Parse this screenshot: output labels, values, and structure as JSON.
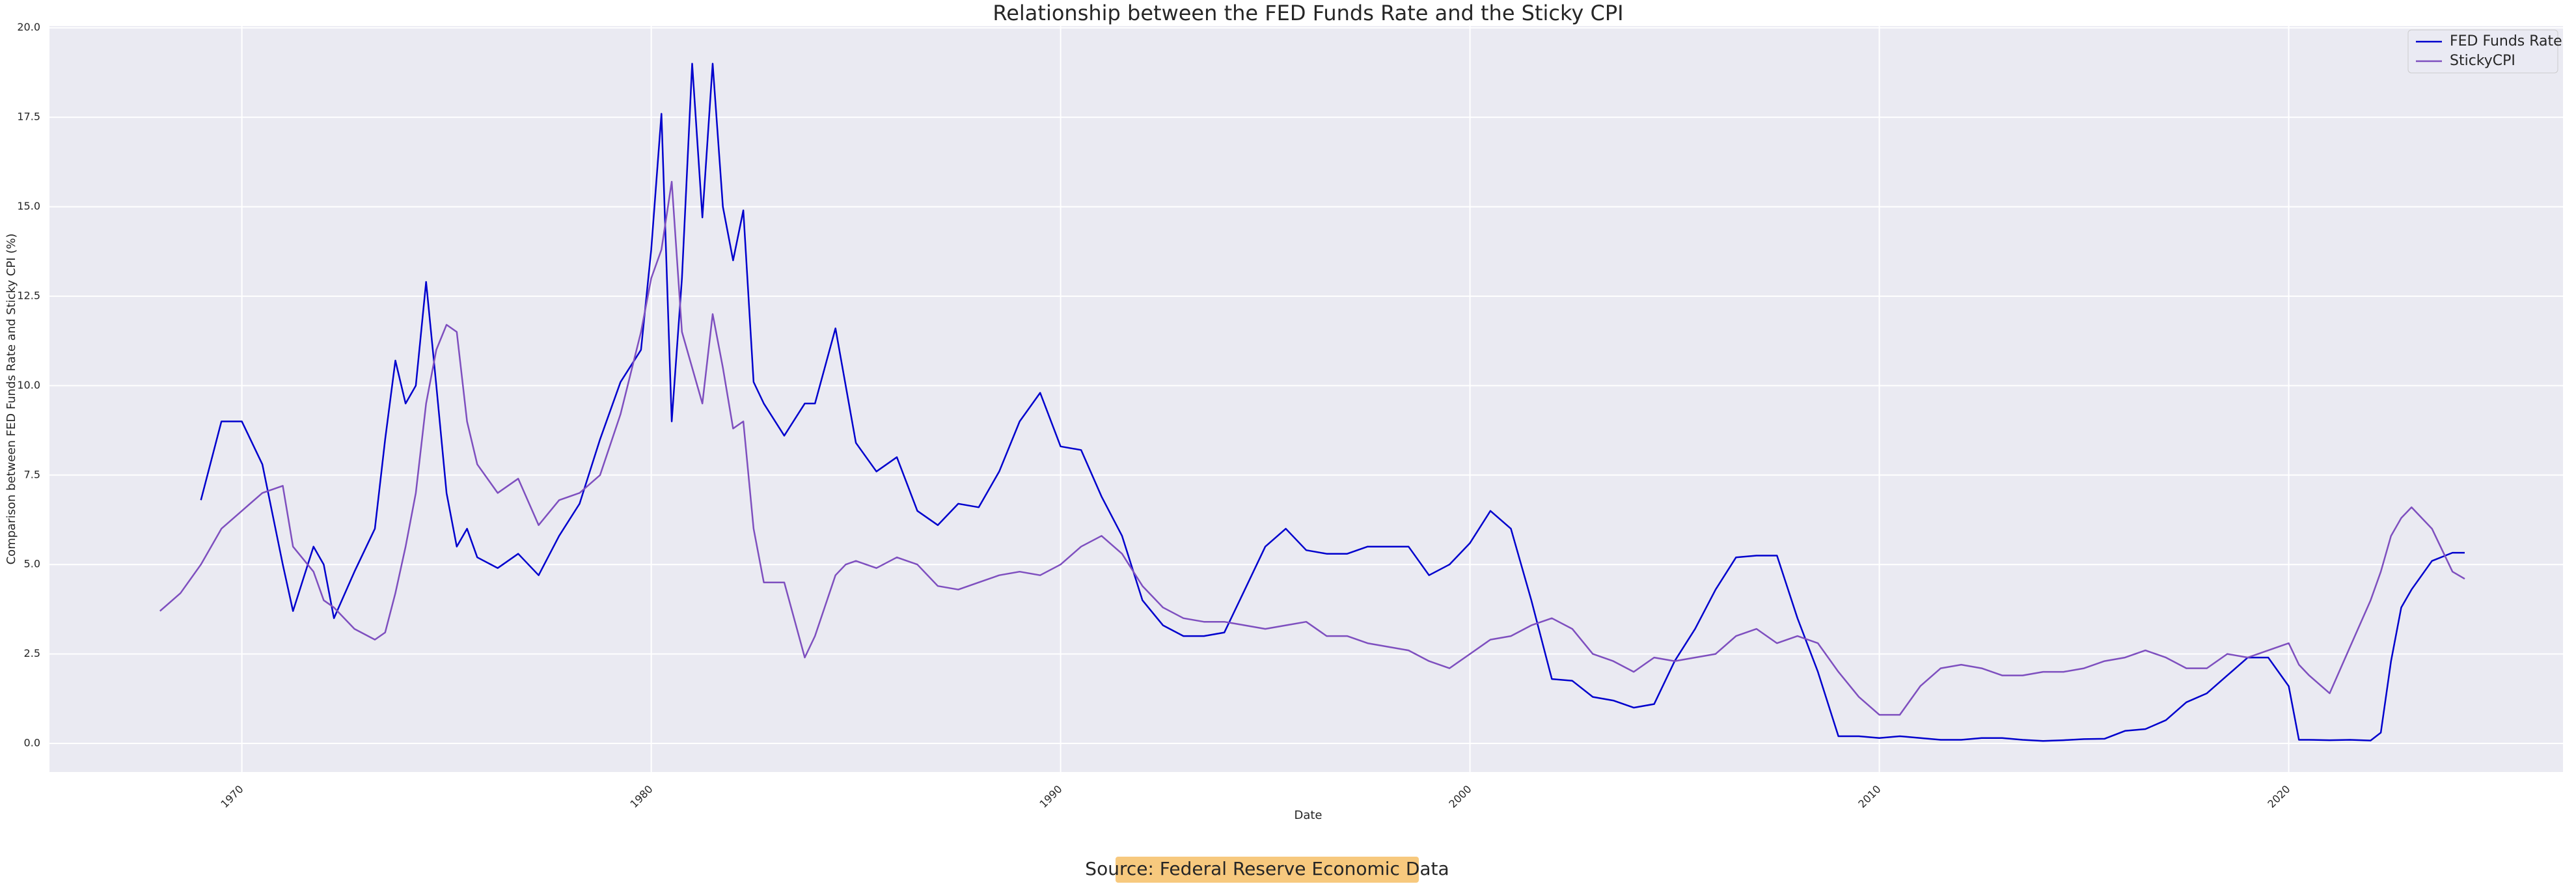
{
  "chart_data": {
    "type": "line",
    "title": "Relationship between the FED Funds Rate and the Sticky CPI",
    "x_label": "Date",
    "y_label": "Comparison between FED Funds Rate and Sticky CPI (%)",
    "annotation": "Source: Federal Reserve Economic Data",
    "grid": true,
    "legend": "upper right",
    "xlim": [
      1965.3,
      2026.7
    ],
    "ylim": [
      -0.8,
      20.05
    ],
    "xticks": [
      1970,
      1980,
      1990,
      2000,
      2010,
      2020
    ],
    "yticks": [
      {
        "value": 0,
        "label": "0.0"
      },
      2.5,
      {
        "value": 5,
        "label": "5.0"
      },
      7.5,
      {
        "value": 10,
        "label": "10.0"
      },
      12.5,
      {
        "value": 15,
        "label": "15.0"
      },
      17.5,
      {
        "value": 20,
        "label": "20.0"
      }
    ],
    "x": [
      1968.0,
      1968.5,
      1969.0,
      1969.5,
      1970.0,
      1970.5,
      1971.0,
      1971.25,
      1971.75,
      1972.0,
      1972.25,
      1972.75,
      1973.25,
      1973.5,
      1973.75,
      1974.0,
      1974.25,
      1974.5,
      1974.75,
      1975.0,
      1975.25,
      1975.5,
      1975.75,
      1976.25,
      1976.75,
      1977.25,
      1977.75,
      1978.25,
      1978.75,
      1979.25,
      1979.75,
      1980.0,
      1980.25,
      1980.5,
      1980.75,
      1981.0,
      1981.25,
      1981.5,
      1981.75,
      1982.0,
      1982.25,
      1982.5,
      1982.75,
      1983.25,
      1983.75,
      1984.0,
      1984.5,
      1984.75,
      1985.0,
      1985.5,
      1986.0,
      1986.5,
      1987.0,
      1987.5,
      1988.0,
      1988.5,
      1989.0,
      1989.5,
      1990.0,
      1990.5,
      1991.0,
      1991.5,
      1992.0,
      1992.5,
      1993.0,
      1993.5,
      1994.0,
      1994.5,
      1995.0,
      1995.5,
      1996.0,
      1996.5,
      1997.0,
      1997.5,
      1998.0,
      1998.5,
      1999.0,
      1999.5,
      2000.0,
      2000.5,
      2001.0,
      2001.5,
      2002.0,
      2002.5,
      2003.0,
      2003.5,
      2004.0,
      2004.5,
      2005.0,
      2005.5,
      2006.0,
      2006.5,
      2007.0,
      2007.5,
      2008.0,
      2008.5,
      2009.0,
      2009.5,
      2010.0,
      2010.5,
      2011.0,
      2011.5,
      2012.0,
      2012.5,
      2013.0,
      2013.5,
      2014.0,
      2014.5,
      2015.0,
      2015.5,
      2016.0,
      2016.5,
      2017.0,
      2017.5,
      2018.0,
      2018.5,
      2019.0,
      2019.5,
      2020.0,
      2020.25,
      2020.5,
      2021.0,
      2021.5,
      2022.0,
      2022.25,
      2022.5,
      2022.75,
      2023.0,
      2023.5,
      2024.0,
      2024.3
    ],
    "series": [
      {
        "name": "FED Funds Rate",
        "color": "#0000cd",
        "values": [
          null,
          null,
          6.8,
          9.0,
          9.0,
          7.8,
          5.0,
          3.7,
          5.5,
          5.0,
          3.5,
          4.8,
          6.0,
          8.5,
          10.7,
          9.5,
          10.0,
          12.9,
          10.0,
          7.0,
          5.5,
          6.0,
          5.2,
          4.9,
          5.3,
          4.7,
          5.8,
          6.7,
          8.5,
          10.1,
          11.0,
          13.8,
          17.6,
          9.0,
          13.0,
          19.0,
          14.7,
          19.0,
          15.0,
          13.5,
          14.9,
          10.1,
          9.5,
          8.6,
          9.5,
          9.5,
          11.6,
          10.0,
          8.4,
          7.6,
          8.0,
          6.5,
          6.1,
          6.7,
          6.6,
          7.6,
          9.0,
          9.8,
          8.3,
          8.2,
          6.9,
          5.8,
          4.0,
          3.3,
          3.0,
          3.0,
          3.1,
          4.3,
          5.5,
          6.0,
          5.4,
          5.3,
          5.3,
          5.5,
          5.5,
          5.5,
          4.7,
          5.0,
          5.6,
          6.5,
          6.0,
          4.0,
          1.8,
          1.75,
          1.3,
          1.2,
          1.0,
          1.1,
          2.3,
          3.2,
          4.3,
          5.2,
          5.25,
          5.25,
          3.5,
          2.0,
          0.2,
          0.2,
          0.15,
          0.2,
          0.15,
          0.1,
          0.1,
          0.15,
          0.15,
          0.1,
          0.07,
          0.09,
          0.12,
          0.13,
          0.35,
          0.4,
          0.65,
          1.15,
          1.4,
          1.9,
          2.4,
          2.4,
          1.6,
          0.1,
          0.1,
          0.09,
          0.1,
          0.08,
          0.3,
          2.3,
          3.8,
          4.3,
          5.1,
          5.33,
          5.33
        ]
      },
      {
        "name": "StickyCPI",
        "color": "#7e4fbf",
        "values": [
          3.7,
          4.2,
          5.0,
          6.0,
          6.5,
          7.0,
          7.2,
          5.5,
          4.8,
          4.0,
          3.8,
          3.2,
          2.9,
          3.1,
          4.2,
          5.5,
          7.0,
          9.5,
          11.0,
          11.7,
          11.5,
          9.0,
          7.8,
          7.0,
          7.4,
          6.1,
          6.8,
          7.0,
          7.5,
          9.2,
          11.5,
          13.0,
          13.8,
          15.7,
          11.5,
          10.5,
          9.5,
          12.0,
          10.5,
          8.8,
          9.0,
          6.0,
          4.5,
          4.5,
          2.4,
          3.0,
          4.7,
          5.0,
          5.1,
          4.9,
          5.2,
          5.0,
          4.4,
          4.3,
          4.5,
          4.7,
          4.8,
          4.7,
          5.0,
          5.5,
          5.8,
          5.3,
          4.4,
          3.8,
          3.5,
          3.4,
          3.4,
          3.3,
          3.2,
          3.3,
          3.4,
          3.0,
          3.0,
          2.8,
          2.7,
          2.6,
          2.3,
          2.1,
          2.5,
          2.9,
          3.0,
          3.3,
          3.5,
          3.2,
          2.5,
          2.3,
          2.0,
          2.4,
          2.3,
          2.4,
          2.5,
          3.0,
          3.2,
          2.8,
          3.0,
          2.8,
          2.0,
          1.3,
          0.8,
          0.8,
          1.6,
          2.1,
          2.2,
          2.1,
          1.9,
          1.9,
          2.0,
          2.0,
          2.1,
          2.3,
          2.4,
          2.6,
          2.4,
          2.1,
          2.1,
          2.5,
          2.4,
          2.6,
          2.8,
          2.2,
          1.9,
          1.4,
          2.7,
          4.0,
          4.8,
          5.8,
          6.3,
          6.6,
          6.0,
          4.8,
          4.6
        ]
      }
    ]
  }
}
